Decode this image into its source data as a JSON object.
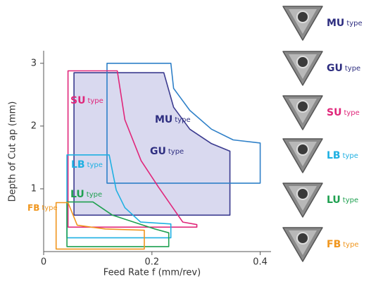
{
  "chart_data": {
    "type": "region",
    "x_label": "Feed Rate f (mm/rev)",
    "y_label": "Depth of Cut ap (mm)",
    "name_suffix": "type",
    "xlim": [
      0,
      0.42
    ],
    "ylim": [
      0,
      3.2
    ],
    "xticks": [
      0,
      0.2,
      0.4
    ],
    "yticks": [
      1,
      2,
      3
    ],
    "series": [
      {
        "name": "GU",
        "color": "#3b3b8f",
        "fill": "#d9d9ef",
        "label_color": "#2e2e80",
        "x": [
          0.056,
          0.222,
          0.24,
          0.27,
          0.31,
          0.344,
          0.344,
          0.056
        ],
        "y": [
          2.85,
          2.85,
          2.3,
          1.95,
          1.72,
          1.6,
          0.58,
          0.58
        ]
      },
      {
        "name": "MU",
        "color": "#2f80c8",
        "fill": "none",
        "label_color": "#2e2e80",
        "x": [
          0.117,
          0.235,
          0.24,
          0.27,
          0.31,
          0.35,
          0.4,
          0.4,
          0.117
        ],
        "y": [
          3.0,
          3.0,
          2.6,
          2.25,
          1.95,
          1.78,
          1.73,
          1.09,
          1.09
        ]
      },
      {
        "name": "SU",
        "color": "#e0267a",
        "fill": "none",
        "label_color": "#e0267a",
        "x": [
          0.045,
          0.136,
          0.15,
          0.18,
          0.212,
          0.257,
          0.283,
          0.283,
          0.045
        ],
        "y": [
          2.88,
          2.88,
          2.1,
          1.45,
          1.03,
          0.47,
          0.43,
          0.39,
          0.39
        ]
      },
      {
        "name": "LB",
        "color": "#1fb0e2",
        "fill": "none",
        "label_color": "#1fb0e2",
        "x": [
          0.043,
          0.121,
          0.134,
          0.15,
          0.179,
          0.235,
          0.235,
          0.043
        ],
        "y": [
          1.54,
          1.54,
          0.98,
          0.7,
          0.47,
          0.44,
          0.22,
          0.22
        ]
      },
      {
        "name": "LU",
        "color": "#1fa050",
        "fill": "none",
        "label_color": "#1fa050",
        "x": [
          0.043,
          0.091,
          0.127,
          0.205,
          0.231,
          0.231,
          0.043
        ],
        "y": [
          0.79,
          0.79,
          0.58,
          0.36,
          0.3,
          0.08,
          0.08
        ]
      },
      {
        "name": "FB",
        "color": "#f0961e",
        "fill": "none",
        "label_color": "#f0961e",
        "x": [
          0.023,
          0.045,
          0.062,
          0.114,
          0.186,
          0.186,
          0.023
        ],
        "y": [
          0.78,
          0.78,
          0.42,
          0.36,
          0.34,
          0.04,
          0.04
        ]
      }
    ]
  }
}
